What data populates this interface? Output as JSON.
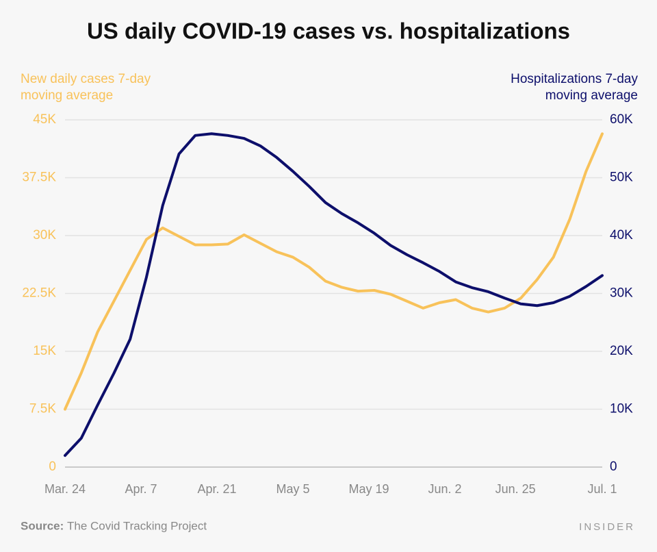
{
  "chart_data": {
    "type": "line",
    "title": "US daily COVID-19 cases vs. hospitalizations",
    "ylabel": [
      "New daily cases 7-day",
      "moving average"
    ],
    "y2label": [
      "Hospitalizations 7-day",
      "moving average"
    ],
    "x": [
      0,
      3,
      6,
      9,
      12,
      15,
      18,
      21,
      24,
      27,
      30,
      33,
      36,
      39,
      42,
      45,
      48,
      51,
      54,
      57,
      60,
      63,
      66,
      69,
      72,
      75,
      78,
      81,
      84,
      87,
      90,
      93,
      96,
      99
    ],
    "xlim": [
      0,
      99
    ],
    "xticks": [
      {
        "value": 0,
        "label": "Mar. 24"
      },
      {
        "value": 14,
        "label": "Apr. 7"
      },
      {
        "value": 28,
        "label": "Apr. 21"
      },
      {
        "value": 42,
        "label": "May 5"
      },
      {
        "value": 56,
        "label": "May 19"
      },
      {
        "value": 70,
        "label": "Jun. 2"
      },
      {
        "value": 83,
        "label": "Jun. 25"
      },
      {
        "value": 99,
        "label": "Jul. 1"
      }
    ],
    "ylim": [
      0,
      45000
    ],
    "yticks": [
      0,
      {
        "value": 7500,
        "label": "7.5K"
      },
      {
        "value": 15000,
        "label": "15K"
      },
      {
        "value": 22500,
        "label": "22.5K"
      },
      {
        "value": 30000,
        "label": "30K"
      },
      {
        "value": 37500,
        "label": "37.5K"
      },
      {
        "value": 45000,
        "label": "45K"
      }
    ],
    "y2lim": [
      0,
      60000
    ],
    "y2ticks": [
      0,
      {
        "value": 10000,
        "label": "10K"
      },
      {
        "value": 20000,
        "label": "20K"
      },
      {
        "value": 30000,
        "label": "30K"
      },
      {
        "value": 40000,
        "label": "40K"
      },
      {
        "value": 50000,
        "label": "50K"
      },
      {
        "value": 60000,
        "label": "60K"
      }
    ],
    "grid": true,
    "series": [
      {
        "color": "#f8c25a",
        "values": [
          7500,
          12200,
          17500,
          21500,
          25500,
          29500,
          31000,
          29900,
          28800,
          28800,
          28900,
          30100,
          29000,
          27900,
          27200,
          25900,
          24100,
          23300,
          22800,
          22900,
          22400,
          21500,
          20600,
          21300,
          21700,
          20600,
          20100,
          20600,
          21900,
          24300,
          27200,
          32100,
          38300,
          43200
        ]
      },
      {
        "color": "#0d0f6b",
        "axis": "y2",
        "values": [
          2000,
          5000,
          10700,
          16200,
          22100,
          32800,
          45200,
          54100,
          57300,
          57600,
          57300,
          56800,
          55500,
          53500,
          51100,
          48500,
          45700,
          43800,
          42200,
          40400,
          38300,
          36700,
          35300,
          33800,
          32000,
          31000,
          30300,
          29200,
          28200,
          27900,
          28400,
          29500,
          31200,
          33100
        ]
      }
    ]
  },
  "source_label": "Source:",
  "source": "The Covid Tracking Project",
  "brand": "INSIDER"
}
